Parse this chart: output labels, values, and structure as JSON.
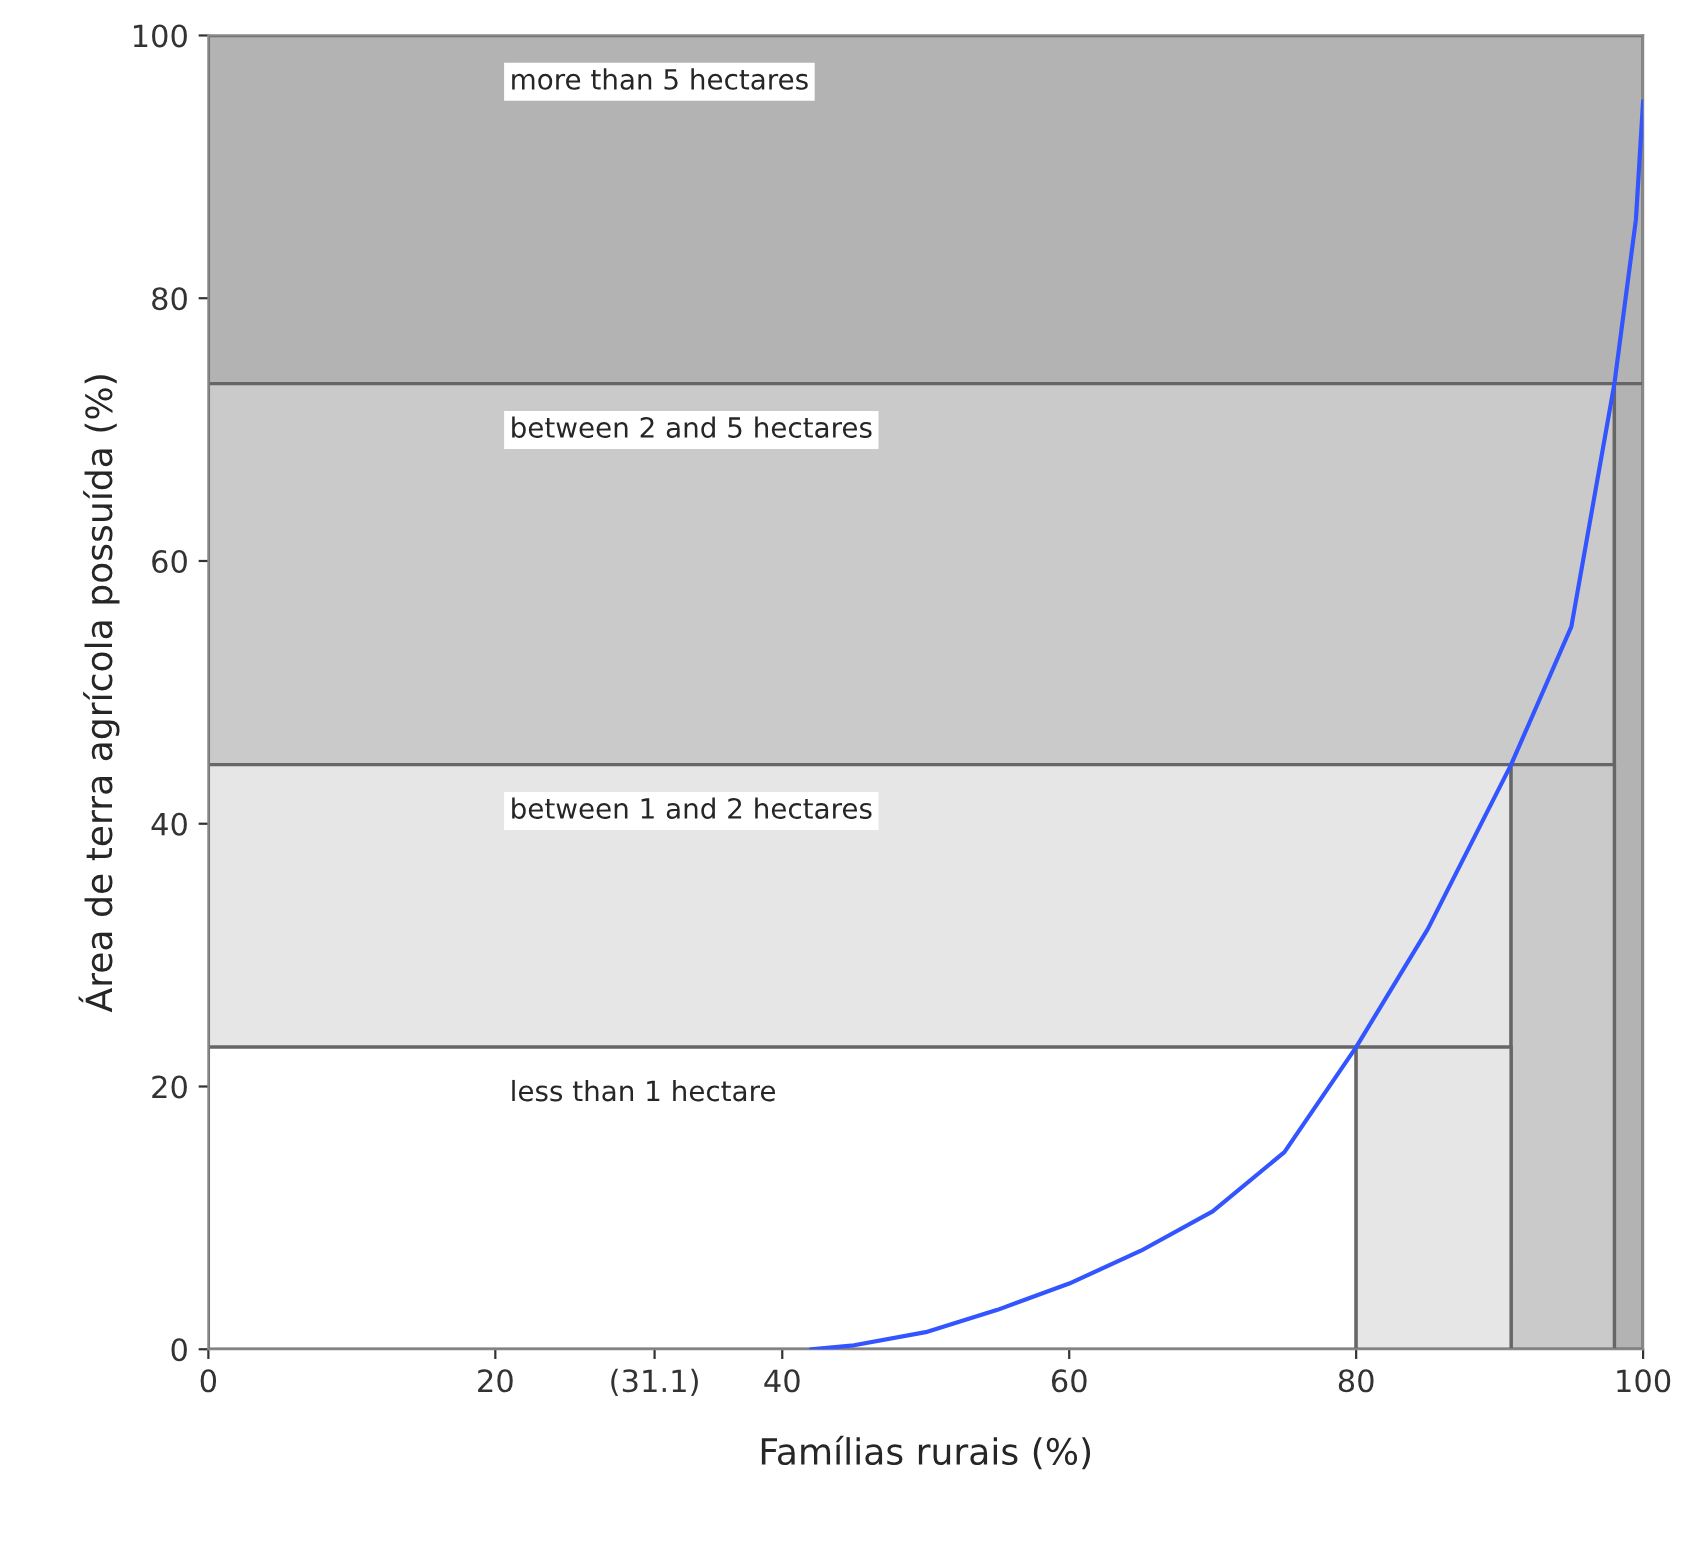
{
  "chart_data": {
    "type": "line",
    "xlabel": "Famílias rurais (%)",
    "ylabel": "Área de terra agrícola possuída (%)",
    "series": [
      {
        "color": "#3355ff",
        "x": [
          42,
          45,
          50,
          55,
          60,
          65,
          70,
          75,
          80,
          85,
          90.8,
          95,
          98,
          99.5,
          100
        ],
        "values": [
          0,
          0.3,
          1.3,
          3,
          5,
          7.5,
          10.5,
          15,
          23,
          32,
          44.5,
          55,
          73.5,
          86,
          95
        ]
      }
    ],
    "bands": [
      {
        "axis": "y",
        "from": 73.5,
        "to": 100,
        "label": "more than 5 hectares",
        "color": "#b3b3b3"
      },
      {
        "axis": "y",
        "from": 44.5,
        "to": 73.5,
        "label": "between 2 and 5 hectares",
        "color": "#cacaca"
      },
      {
        "axis": "y",
        "from": 23,
        "to": 44.5,
        "label": "between 1 and 2 hectares",
        "color": "#e6e6e6"
      },
      {
        "axis": "y",
        "from": 0,
        "to": 23,
        "label": "less than 1 hectare",
        "color": "#ffffff"
      },
      {
        "axis": "x",
        "from": 98,
        "to": 100,
        "color": "#b3b3b3"
      },
      {
        "axis": "x",
        "from": 90.8,
        "to": 98,
        "color": "#cacaca"
      },
      {
        "axis": "x",
        "from": 80,
        "to": 90.8,
        "color": "#e6e6e6"
      }
    ],
    "xlim": [
      0,
      100
    ],
    "ylim": [
      0,
      100
    ],
    "xticks": [
      0,
      20,
      {
        "value": 31.1,
        "label": "(31.1)"
      },
      40,
      60,
      80,
      100
    ],
    "yticks": [
      0,
      20,
      40,
      60,
      80,
      100
    ],
    "legend": false,
    "marker": "none",
    "line_style": "solid"
  }
}
